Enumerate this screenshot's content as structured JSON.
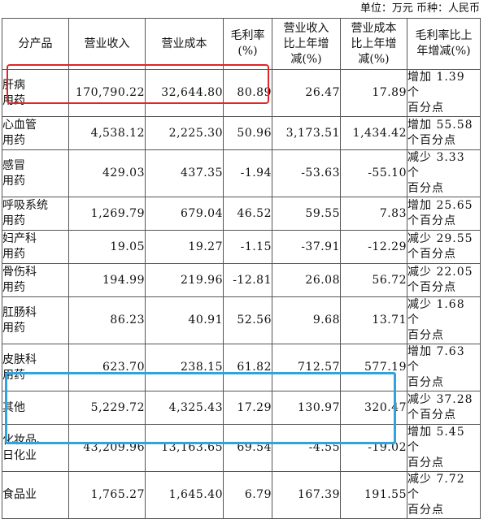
{
  "unit_line": "单位：万元    币种：人民币",
  "headers": [
    "分产品",
    "营业收入",
    "营业成本",
    "毛利率\n(%)",
    "营业收入\n比上年增\n减(%)",
    "营业成本\n比上年增\n减(%)",
    "毛利率比上\n年增减(%)"
  ],
  "rows": [
    {
      "name": "肝病\n用药",
      "revenue": "170,790.22",
      "cost": "32,644.80",
      "margin": "80.89",
      "rev_change": "26.47",
      "cost_change": "17.89",
      "margin_change": "增加 1.39 个\n百分点"
    },
    {
      "name": "心血管\n用药",
      "revenue": "4,538.12",
      "cost": "2,225.30",
      "margin": "50.96",
      "rev_change": "3,173.51",
      "cost_change": "1,434.42",
      "margin_change": "增加 55.58\n个百分点"
    },
    {
      "name": "感冒\n用药",
      "revenue": "429.03",
      "cost": "437.35",
      "margin": "-1.94",
      "rev_change": "-53.63",
      "cost_change": "-55.10",
      "margin_change": "减少 3.33 个\n百分点"
    },
    {
      "name": "呼吸系统\n用药",
      "revenue": "1,269.79",
      "cost": "679.04",
      "margin": "46.52",
      "rev_change": "59.55",
      "cost_change": "7.83",
      "margin_change": "增加 25.65\n个百分点"
    },
    {
      "name": "妇产科\n用药",
      "revenue": "19.05",
      "cost": "19.27",
      "margin": "-1.15",
      "rev_change": "-37.91",
      "cost_change": "-12.29",
      "margin_change": "减少 29.55\n个百分点"
    },
    {
      "name": "骨伤科\n用药",
      "revenue": "194.99",
      "cost": "219.96",
      "margin": "-12.81",
      "rev_change": "26.08",
      "cost_change": "56.72",
      "margin_change": "减少 22.05\n个百分点"
    },
    {
      "name": "肛肠科\n用药",
      "revenue": "86.23",
      "cost": "40.91",
      "margin": "52.56",
      "rev_change": "9.68",
      "cost_change": "13.71",
      "margin_change": "减少 1.68 个\n百分点"
    },
    {
      "name": "皮肤科\n用药",
      "revenue": "623.70",
      "cost": "238.15",
      "margin": "61.82",
      "rev_change": "712.57",
      "cost_change": "577.19",
      "margin_change": "增加 7.63 个\n百分点"
    },
    {
      "name": "其他",
      "revenue": "5,229.72",
      "cost": "4,325.43",
      "margin": "17.29",
      "rev_change": "130.97",
      "cost_change": "320.47",
      "margin_change": "减少 37.28\n个百分点"
    },
    {
      "name": "化妆品、\n日化业",
      "revenue": "43,209.96",
      "cost": "13,163.65",
      "margin": "69.54",
      "rev_change": "-4.55",
      "cost_change": "-19.02",
      "margin_change": "增加 5.45 个\n百分点"
    },
    {
      "name": "食品业",
      "revenue": "1,765.27",
      "cost": "1,645.40",
      "margin": "6.79",
      "rev_change": "167.39",
      "cost_change": "191.55",
      "margin_change": "减少 7.72 个\n百分点"
    }
  ],
  "highlight_colors": {
    "red": "#e0242a",
    "blue": "#2ea4de"
  }
}
